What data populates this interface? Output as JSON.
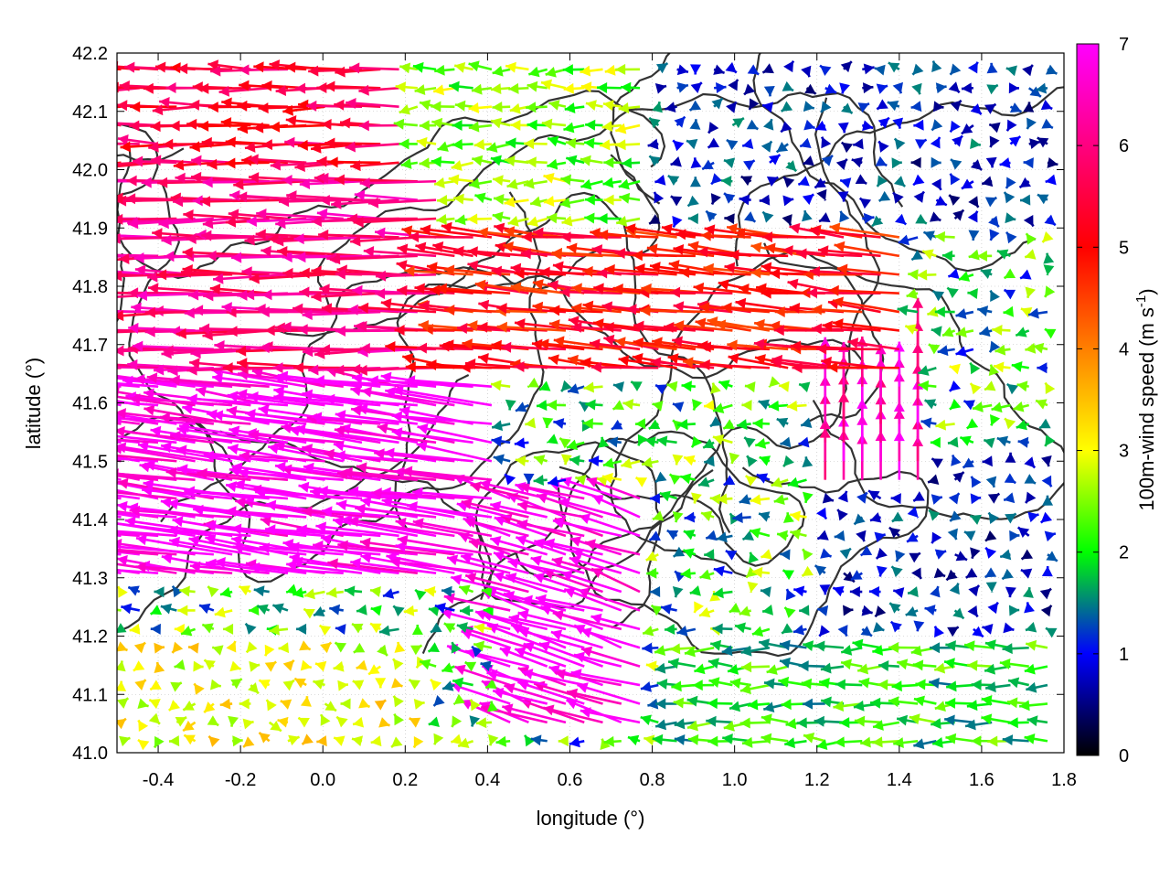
{
  "chart_data": {
    "type": "vector-field",
    "xlabel": "longitude (°)",
    "ylabel": "latitude (°)",
    "xlim": [
      -0.5,
      1.8
    ],
    "ylim": [
      41.0,
      42.2
    ],
    "x_ticks": [
      "-0.4",
      "-0.2",
      "0.0",
      "0.2",
      "0.4",
      "0.6",
      "0.8",
      "1.0",
      "1.2",
      "1.4",
      "1.6",
      "1.8"
    ],
    "y_ticks": [
      "41.0",
      "41.1",
      "41.2",
      "41.3",
      "41.4",
      "41.5",
      "41.6",
      "41.7",
      "41.8",
      "41.9",
      "42.0",
      "42.1",
      "42.2"
    ],
    "grid": "dotted",
    "colorbar": {
      "label_main": "100m-wind speed (m s",
      "label_sup": "-1",
      "label_end": ")",
      "range": [
        0,
        7
      ],
      "ticks": [
        "0",
        "1",
        "2",
        "3",
        "4",
        "5",
        "6",
        "7"
      ],
      "colors": [
        "#000000",
        "#0000ff",
        "#00ff00",
        "#ffff00",
        "#ff8000",
        "#ff0000",
        "#ff00ff"
      ]
    },
    "contour_color": "#333333",
    "regions": [
      {
        "lon": [
          -0.5,
          0.45
        ],
        "lat": [
          41.3,
          41.65
        ],
        "speed": 7.0,
        "direction": "westward",
        "dx": -0.22,
        "dy": 0.02
      },
      {
        "lon": [
          0.45,
          0.8
        ],
        "lat": [
          41.05,
          41.45
        ],
        "speed": 7.0,
        "direction": "west-northwest",
        "dx": -0.14,
        "dy": 0.03
      },
      {
        "lon": [
          -0.5,
          0.3
        ],
        "lat": [
          41.65,
          42.0
        ],
        "speed": 6.0,
        "direction": "westward",
        "dx": -0.18,
        "dy": 0.0
      },
      {
        "lon": [
          -0.5,
          0.2
        ],
        "lat": [
          42.0,
          42.2
        ],
        "speed": 5.5,
        "direction": "westward",
        "dx": -0.12,
        "dy": 0.0
      },
      {
        "lon": [
          0.3,
          1.4
        ],
        "lat": [
          41.65,
          41.9
        ],
        "speed": 5.0,
        "direction": "westward",
        "dx": -0.15,
        "dy": 0.01
      },
      {
        "lon": [
          0.2,
          0.8
        ],
        "lat": [
          41.9,
          42.2
        ],
        "speed": 2.5,
        "direction": "westward",
        "dx": -0.05,
        "dy": 0.0
      },
      {
        "lon": [
          0.8,
          1.8
        ],
        "lat": [
          41.9,
          42.2
        ],
        "speed": 1.0,
        "direction": "variable",
        "dx": -0.02,
        "dy": 0.0
      },
      {
        "lon": [
          1.2,
          1.45
        ],
        "lat": [
          41.45,
          41.7
        ],
        "speed": 6.5,
        "direction": "north",
        "dx": 0.0,
        "dy": 0.08
      },
      {
        "lon": [
          0.85,
          1.8
        ],
        "lat": [
          41.0,
          41.2
        ],
        "speed": 2.0,
        "direction": "westward",
        "dx": -0.06,
        "dy": 0.0
      },
      {
        "lon": [
          1.2,
          1.8
        ],
        "lat": [
          41.2,
          41.5
        ],
        "speed": 1.0,
        "direction": "variable",
        "dx": 0.02,
        "dy": 0.0
      },
      {
        "lon": [
          -0.5,
          0.25
        ],
        "lat": [
          41.0,
          41.2
        ],
        "speed": 3.0,
        "direction": "variable",
        "dx": 0.04,
        "dy": 0.0
      }
    ]
  }
}
